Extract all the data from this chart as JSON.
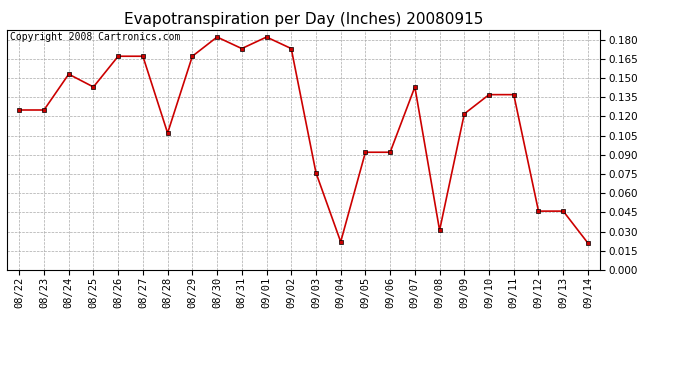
{
  "title": "Evapotranspiration per Day (Inches) 20080915",
  "copyright_text": "Copyright 2008 Cartronics.com",
  "dates": [
    "08/22",
    "08/23",
    "08/24",
    "08/25",
    "08/26",
    "08/27",
    "08/28",
    "08/29",
    "08/30",
    "08/31",
    "09/01",
    "09/02",
    "09/03",
    "09/04",
    "09/05",
    "09/06",
    "09/07",
    "09/08",
    "09/09",
    "09/10",
    "09/11",
    "09/12",
    "09/13",
    "09/14"
  ],
  "values": [
    0.125,
    0.125,
    0.153,
    0.143,
    0.167,
    0.167,
    0.107,
    0.167,
    0.182,
    0.173,
    0.182,
    0.173,
    0.076,
    0.022,
    0.092,
    0.092,
    0.143,
    0.031,
    0.122,
    0.137,
    0.137,
    0.046,
    0.046,
    0.021
  ],
  "line_color": "#cc0000",
  "marker_color": "#cc0000",
  "marker_edge_color": "#000000",
  "background_color": "#ffffff",
  "grid_color": "#aaaaaa",
  "ylim": [
    0.0,
    0.1875
  ],
  "ytick_values": [
    0.0,
    0.015,
    0.03,
    0.045,
    0.06,
    0.075,
    0.09,
    0.105,
    0.12,
    0.135,
    0.15,
    0.165,
    0.18
  ],
  "title_fontsize": 11,
  "copyright_fontsize": 7,
  "tick_fontsize": 7.5
}
